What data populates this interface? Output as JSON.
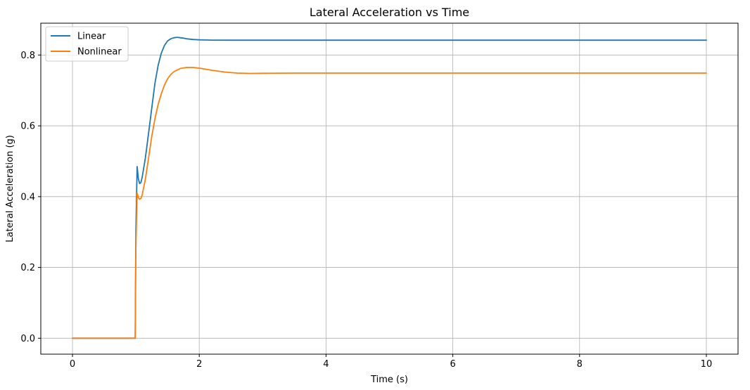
{
  "chart_data": {
    "type": "line",
    "title": "Lateral Acceleration vs Time",
    "xlabel": "Time (s)",
    "ylabel": "Lateral Acceleration (g)",
    "xlim": [
      -0.5,
      10.5
    ],
    "ylim": [
      -0.045,
      0.89
    ],
    "xticks": [
      0,
      2,
      4,
      6,
      8,
      10
    ],
    "xtick_labels": [
      "0",
      "2",
      "4",
      "6",
      "8",
      "10"
    ],
    "yticks": [
      0.0,
      0.2,
      0.4,
      0.6,
      0.8
    ],
    "ytick_labels": [
      "0.0",
      "0.2",
      "0.4",
      "0.6",
      "0.8"
    ],
    "grid": true,
    "legend_position": "top-left",
    "series": [
      {
        "name": "Linear",
        "color": "#1f77b4",
        "x": [
          0,
          0.99,
          1.0,
          1.02,
          1.04,
          1.06,
          1.08,
          1.1,
          1.15,
          1.2,
          1.25,
          1.3,
          1.35,
          1.4,
          1.45,
          1.5,
          1.55,
          1.6,
          1.65,
          1.7,
          1.75,
          1.8,
          1.9,
          2.0,
          2.1,
          2.2,
          2.5,
          3.0,
          4.0,
          6.0,
          8.0,
          10.0
        ],
        "y": [
          0,
          0,
          0.3,
          0.485,
          0.45,
          0.437,
          0.44,
          0.455,
          0.51,
          0.58,
          0.65,
          0.72,
          0.77,
          0.805,
          0.827,
          0.84,
          0.846,
          0.849,
          0.85,
          0.849,
          0.848,
          0.846,
          0.844,
          0.843,
          0.8425,
          0.8422,
          0.842,
          0.842,
          0.842,
          0.842,
          0.842,
          0.842
        ]
      },
      {
        "name": "Nonlinear",
        "color": "#ff7f0e",
        "x": [
          0,
          0.99,
          1.0,
          1.02,
          1.04,
          1.06,
          1.08,
          1.1,
          1.15,
          1.2,
          1.25,
          1.3,
          1.35,
          1.4,
          1.45,
          1.5,
          1.55,
          1.6,
          1.7,
          1.8,
          1.9,
          2.0,
          2.1,
          2.2,
          2.4,
          2.6,
          2.8,
          3.0,
          3.5,
          4.0,
          6.0,
          8.0,
          10.0
        ],
        "y": [
          0,
          0,
          0.25,
          0.41,
          0.397,
          0.393,
          0.395,
          0.405,
          0.45,
          0.51,
          0.57,
          0.62,
          0.66,
          0.69,
          0.715,
          0.733,
          0.745,
          0.753,
          0.762,
          0.765,
          0.765,
          0.763,
          0.76,
          0.757,
          0.752,
          0.749,
          0.748,
          0.7485,
          0.749,
          0.749,
          0.749,
          0.749,
          0.749
        ]
      }
    ]
  }
}
